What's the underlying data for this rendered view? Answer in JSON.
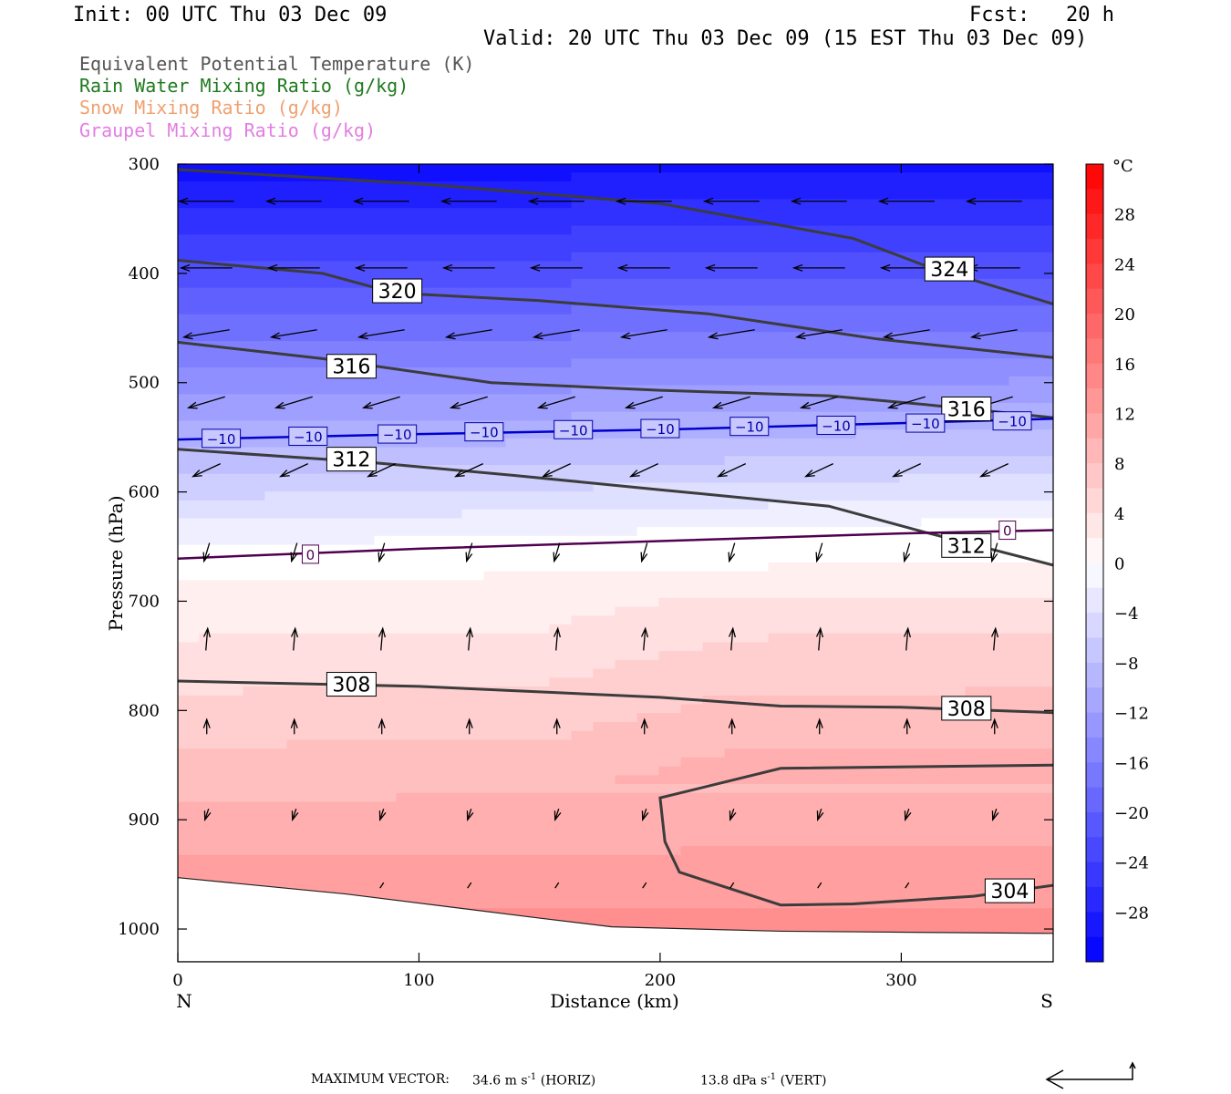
{
  "header": {
    "init": "Init: 00 UTC Thu 03 Dec 09",
    "fcst": "Fcst:   20 h",
    "valid": "Valid: 20 UTC Thu 03 Dec 09 (15 EST Thu 03 Dec 09)"
  },
  "legend": [
    {
      "label": "Equivalent Potential Temperature (K)",
      "color": "#555555"
    },
    {
      "label": "Rain Water Mixing Ratio (g/kg)",
      "color": "#1f7a1f"
    },
    {
      "label": "Snow Mixing Ratio (g/kg)",
      "color": "#f0a070"
    },
    {
      "label": "Graupel Mixing Ratio (g/kg)",
      "color": "#e27ee2"
    }
  ],
  "chart_data": {
    "type": "cross-section contour",
    "xlabel": "Distance (km)",
    "ylabel": "Pressure (hPa)",
    "xlim": [
      0,
      363
    ],
    "ylim": [
      1030,
      300
    ],
    "x_ticks": [
      "0",
      "100",
      "200",
      "300"
    ],
    "y_ticks": [
      "300",
      "400",
      "500",
      "600",
      "700",
      "800",
      "900",
      "1000"
    ],
    "x_ends": {
      "left": "N",
      "right": "S"
    },
    "colorbar": {
      "unit": "°C",
      "ticks": [
        "28",
        "24",
        "20",
        "16",
        "12",
        "8",
        "4",
        "0",
        "−4",
        "−8",
        "−12",
        "−16",
        "−20",
        "−24",
        "−28"
      ],
      "range": [
        -32,
        32
      ]
    },
    "theta_e_contours": [
      {
        "label": "324",
        "points": [
          [
            0,
            305
          ],
          [
            100,
            318
          ],
          [
            200,
            336
          ],
          [
            280,
            368
          ],
          [
            310,
            393
          ],
          [
            363,
            428
          ]
        ]
      },
      {
        "label": "320",
        "points": [
          [
            0,
            388
          ],
          [
            60,
            400
          ],
          [
            90,
            418
          ],
          [
            150,
            425
          ],
          [
            220,
            437
          ],
          [
            290,
            460
          ],
          [
            363,
            477
          ]
        ]
      },
      {
        "label": "316",
        "points": [
          [
            0,
            463
          ],
          [
            60,
            478
          ],
          [
            130,
            500
          ],
          [
            200,
            507
          ],
          [
            270,
            512
          ],
          [
            310,
            520
          ],
          [
            363,
            532
          ]
        ]
      },
      {
        "label": "312",
        "points": [
          [
            0,
            561
          ],
          [
            80,
            573
          ],
          [
            140,
            585
          ],
          [
            200,
            598
          ],
          [
            270,
            613
          ],
          [
            310,
            637
          ],
          [
            363,
            667
          ]
        ]
      },
      {
        "label": "308",
        "points": [
          [
            0,
            773
          ],
          [
            100,
            778
          ],
          [
            200,
            788
          ],
          [
            250,
            796
          ],
          [
            300,
            797
          ],
          [
            363,
            802
          ]
        ]
      },
      {
        "label": "304",
        "points": [
          [
            363,
            850
          ],
          [
            250,
            853
          ],
          [
            200,
            880
          ],
          [
            202,
            920
          ],
          [
            208,
            948
          ],
          [
            250,
            978
          ],
          [
            280,
            977
          ],
          [
            330,
            970
          ],
          [
            363,
            960
          ]
        ]
      }
    ],
    "theta_e_labels": [
      {
        "text": "324",
        "x": 320,
        "p": 396
      },
      {
        "text": "320",
        "x": 91,
        "p": 416
      },
      {
        "text": "316",
        "x": 72,
        "p": 485
      },
      {
        "text": "316",
        "x": 327,
        "p": 524
      },
      {
        "text": "312",
        "x": 72,
        "p": 570
      },
      {
        "text": "312",
        "x": 327,
        "p": 649
      },
      {
        "text": "308",
        "x": 72,
        "p": 776
      },
      {
        "text": "308",
        "x": 327,
        "p": 798
      },
      {
        "text": "304",
        "x": 345,
        "p": 965
      }
    ],
    "isotherms": [
      {
        "value": -10,
        "color": "#0000cc",
        "points": [
          [
            0,
            552
          ],
          [
            100,
            547
          ],
          [
            200,
            543
          ],
          [
            300,
            537
          ],
          [
            363,
            533
          ]
        ]
      },
      {
        "value": 0,
        "color": "#500050",
        "points": [
          [
            0,
            661
          ],
          [
            100,
            652
          ],
          [
            200,
            645
          ],
          [
            300,
            638
          ],
          [
            363,
            635
          ]
        ]
      }
    ],
    "isotherm_labels": [
      {
        "text": "−10",
        "x": 18,
        "p": 551
      },
      {
        "text": "−10",
        "x": 54,
        "p": 549
      },
      {
        "text": "−10",
        "x": 91,
        "p": 547
      },
      {
        "text": "−10",
        "x": 127,
        "p": 545
      },
      {
        "text": "−10",
        "x": 164,
        "p": 543
      },
      {
        "text": "−10",
        "x": 200,
        "p": 542
      },
      {
        "text": "−10",
        "x": 237,
        "p": 540
      },
      {
        "text": "−10",
        "x": 273,
        "p": 539
      },
      {
        "text": "−10",
        "x": 310,
        "p": 537
      },
      {
        "text": "−10",
        "x": 346,
        "p": 535
      },
      {
        "text": "0",
        "x": 55,
        "p": 657
      },
      {
        "text": "0",
        "x": 344,
        "p": 635
      }
    ],
    "surface_pressure": [
      [
        0,
        953
      ],
      [
        70,
        968
      ],
      [
        150,
        990
      ],
      [
        180,
        998
      ],
      [
        250,
        1002
      ],
      [
        363,
        1004
      ]
    ],
    "wind_rows": [
      {
        "p": 334,
        "u": -30,
        "w": 0
      },
      {
        "p": 395,
        "u": -28,
        "w": 0
      },
      {
        "p": 455,
        "u": -25,
        "w": 4
      },
      {
        "p": 518,
        "u": -20,
        "w": 6
      },
      {
        "p": 580,
        "u": -15,
        "w": 7
      },
      {
        "p": 655,
        "u": -3,
        "w": 10
      },
      {
        "p": 735,
        "u": 1,
        "w": -12
      },
      {
        "p": 815,
        "u": 0,
        "w": -8
      },
      {
        "p": 895,
        "u": -2,
        "w": 6
      },
      {
        "p": 960,
        "u": -2,
        "w": 3
      }
    ],
    "footer": {
      "label": "MAXIMUM VECTOR:",
      "horiz_value": "34.6 m s",
      "horiz_unit": "(HORIZ)",
      "vert_value": "13.8 dPa s",
      "vert_unit": "(VERT)",
      "exp": "-1"
    }
  }
}
